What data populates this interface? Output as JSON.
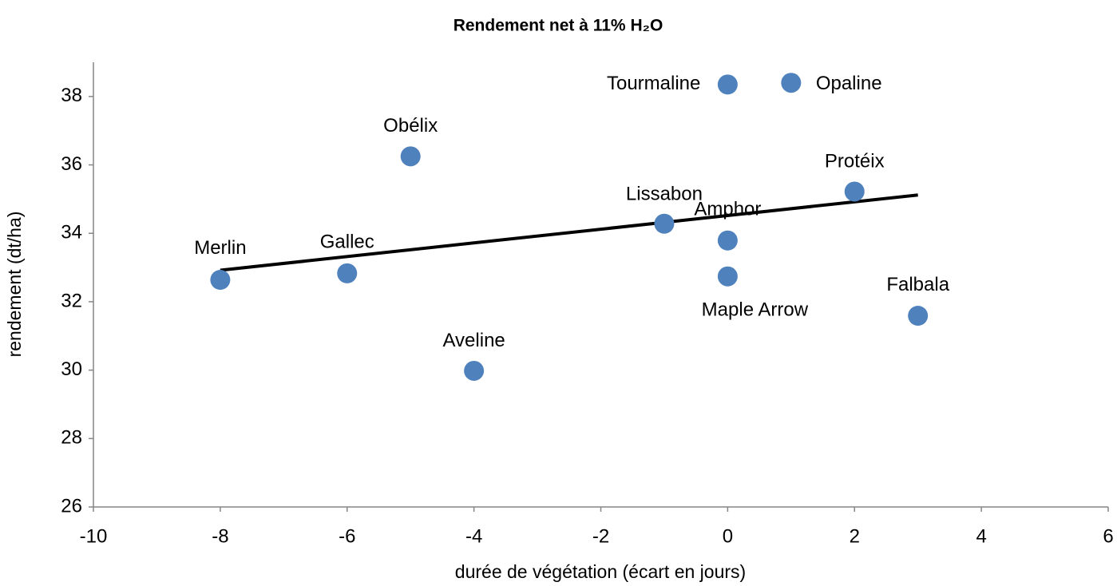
{
  "chart_data": {
    "type": "scatter",
    "title": "Rendement net à 11% H₂O",
    "x_label": "durée de végétation (écart en jours)",
    "y_label": "rendement (dt/ha)",
    "labels": [
      "Merlin",
      "Gallec",
      "Obélix",
      "Aveline",
      "Lissabon",
      "Amphor",
      "Maple Arrow",
      "Tourmaline",
      "Opaline",
      "Protéix",
      "Falbala"
    ],
    "x": [
      -8,
      -6,
      -5,
      -4,
      -1,
      0,
      0,
      0,
      1,
      2,
      3
    ],
    "values": [
      32.64,
      32.83,
      36.25,
      29.98,
      34.28,
      33.79,
      32.74,
      38.35,
      38.4,
      35.22,
      31.59
    ],
    "color": "#4f81bd",
    "trendline": {
      "x": [
        -8,
        3
      ],
      "values": [
        32.92,
        35.12
      ],
      "color": "#000000"
    },
    "xlim": [
      -10,
      6
    ],
    "xticks": [
      -10,
      -8,
      -6,
      -4,
      -2,
      0,
      2,
      4,
      6
    ],
    "ylim": [
      26,
      39
    ],
    "yticks": [
      26,
      28,
      30,
      32,
      34,
      36,
      38
    ]
  }
}
